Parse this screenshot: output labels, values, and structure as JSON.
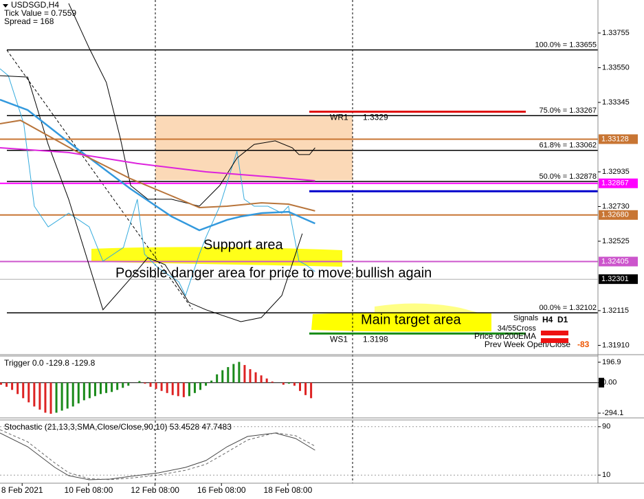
{
  "header": [
    "USDSGD,H4",
    "Tick Value = 0.7559",
    "Spread = 168"
  ],
  "annotations": [
    "Support area",
    "Possible danger area for price to move bullish again",
    "Main target area"
  ],
  "signals": {
    "title": "Signals",
    "timeframes": [
      "H4",
      "D1"
    ],
    "rows": [
      "34/55Cross",
      "Price on200EMA",
      "Prev Week Open/Close"
    ],
    "value": -83
  },
  "chart_data": [
    {
      "type": "line",
      "xlim": [
        0,
        108
      ],
      "xticks": [
        {
          "value": 4,
          "label": "8 Feb 2021"
        },
        {
          "value": 16,
          "label": "10 Feb 08:00"
        },
        {
          "value": 28,
          "label": "12 Feb 08:00"
        },
        {
          "value": 40,
          "label": "16 Feb 08:00"
        },
        {
          "value": 52,
          "label": "18 Feb 08:00"
        }
      ],
      "ylim": [
        1.31859,
        1.3395
      ],
      "yticks": [
        1.33755,
        {
          "value": 1.3355,
          "label": "1.33550"
        },
        1.33345,
        1.32935,
        {
          "value": 1.3273,
          "label": "1.32730"
        },
        1.32525,
        1.32115,
        {
          "value": 1.3191,
          "label": "1.31910"
        }
      ],
      "series": [
        {
          "color": "#33aadd",
          "width": 1,
          "x": [
            0,
            1.5,
            4.3,
            6.2,
            8.7,
            12.4,
            16.1,
            18.6,
            22.3,
            24.8,
            26.1,
            28.6,
            32.3,
            33.5,
            36,
            37.2,
            39.7,
            42.8,
            44.1,
            45.9,
            48.4,
            50.9,
            52.1,
            54,
            55.2,
            56.9
          ],
          "values": [
            1.33544,
            1.33503,
            1.33219,
            1.32732,
            1.3261,
            1.32691,
            1.3261,
            1.32407,
            1.32488,
            1.32773,
            1.32448,
            1.32367,
            1.32285,
            1.32204,
            1.32448,
            1.32549,
            1.32732,
            1.33057,
            1.32773,
            1.32732,
            1.32732,
            1.32691,
            1.32732,
            1.32407,
            1.32387,
            1.32346
          ]
        },
        {
          "color": "#000000",
          "width": 1,
          "x": [
            12.4,
            16.1,
            19.2,
            21.7,
            23.6,
            26.7,
            31,
            36,
            39.7,
            42.8,
            45.9,
            49.7,
            52.8,
            54,
            55.9,
            56.9
          ],
          "values": [
            1.3393,
            1.33666,
            1.33463,
            1.33138,
            1.32854,
            1.32773,
            1.32773,
            1.32732,
            1.32854,
            1.33016,
            1.33097,
            1.33118,
            1.33077,
            1.33037,
            1.33037,
            1.33077
          ]
        },
        {
          "color": "#000000",
          "width": 1,
          "x": [
            0,
            5,
            8.7,
            12.4,
            18.6,
            23.6,
            26.7,
            29.8,
            34.1,
            37.2,
            43.5,
            47.2,
            50.9,
            54.6
          ],
          "values": [
            1.33503,
            1.33495,
            1.33097,
            1.32773,
            1.3212,
            1.32306,
            1.32428,
            1.32387,
            1.32164,
            1.3212,
            1.3205,
            1.32074,
            1.32204,
            1.3257
          ]
        },
        {
          "color": "#3399dd",
          "width": 2.5,
          "x": [
            0,
            5,
            13.7,
            23.6,
            31,
            36,
            41,
            43.5,
            47.2,
            52.1,
            56.9
          ],
          "values": [
            1.33361,
            1.333,
            1.33077,
            1.32834,
            1.32671,
            1.3259,
            1.32651,
            1.32671,
            1.32691,
            1.32699,
            1.3263
          ]
        },
        {
          "color": "#b8743a",
          "width": 2,
          "x": [
            0,
            3.7,
            13.7,
            23.6,
            31,
            36,
            41,
            47.2,
            52.1,
            56.9
          ],
          "values": [
            1.33219,
            1.33239,
            1.33057,
            1.32894,
            1.32793,
            1.32724,
            1.32732,
            1.32752,
            1.32744,
            1.32704
          ]
        },
        {
          "color": "#dd22dd",
          "width": 2,
          "x": [
            0,
            12.4,
            24.8,
            37.2,
            49.7,
            56.9
          ],
          "values": [
            1.33077,
            1.33049,
            1.32984,
            1.32935,
            1.32903,
            1.32882
          ]
        }
      ],
      "fib_levels": [
        {
          "value": 1.33655,
          "label": "100.0% = 1.33655"
        },
        {
          "value": 1.33267,
          "label": "75.0% = 1.33267"
        },
        {
          "value": 1.33062,
          "label": "61.8% = 1.33062"
        },
        {
          "value": 1.32878,
          "label": "50.0% = 1.32878"
        },
        {
          "value": 1.32102,
          "label": "00.0% = 1.32102"
        }
      ],
      "price_lines": [
        {
          "value": 1.33128,
          "label": "1.33128",
          "color": "#c87533"
        },
        {
          "value": 1.32867,
          "label": "1.32867",
          "color": "#ff00ff"
        },
        {
          "value": 1.3268,
          "label": "1.32680",
          "color": "#c87533"
        },
        {
          "value": 1.32405,
          "label": "1.32405",
          "color": "#cc55cc"
        },
        {
          "value": 1.32301,
          "label": "1.32301",
          "color": "#000000"
        }
      ],
      "pivots": [
        {
          "name": "WR1",
          "value": 1.3329,
          "color": "#e01010"
        },
        {
          "value": 1.3282,
          "color": "#0000cc"
        },
        {
          "name": "WS1",
          "value": 1.3198,
          "color": "#138a13"
        }
      ]
    },
    {
      "type": "bar",
      "title": "Trigger 0.0 -129.8 -129.8",
      "ylim": [
        -340,
        250
      ],
      "yticks": [
        196.9,
        {
          "value": 0,
          "label": "0.00"
        },
        -294.1
      ],
      "up_color": "#1a8a1a",
      "down_color": "#dd2222",
      "values": [
        -20,
        -40,
        -70,
        -110,
        -150,
        -190,
        -230,
        -260,
        -290,
        -300,
        -290,
        -270,
        -250,
        -230,
        -200,
        -170,
        -150,
        -130,
        -110,
        -100,
        -90,
        -70,
        -50,
        -30,
        0,
        15,
        -10,
        -40,
        -60,
        -80,
        -100,
        -120,
        -130,
        -140,
        -130,
        -100,
        -70,
        -30,
        20,
        80,
        120,
        150,
        180,
        200,
        170,
        130,
        100,
        70,
        40,
        10,
        0,
        -20,
        -10,
        -30,
        -80,
        -120,
        -150
      ]
    },
    {
      "type": "line",
      "title": "Stochastic (21,13,3,SMA,Close/Close,90,10) 53.4528 47.7483",
      "ylim": [
        0,
        100
      ],
      "yticks": [
        90,
        10
      ],
      "series": [
        {
          "color": "#444444",
          "width": 1,
          "x": [
            0,
            5,
            9.9,
            12.4,
            16.1,
            19.9,
            23.6,
            28.6,
            33.5,
            37.2,
            41,
            44.7,
            49.7,
            53.4,
            56.9
          ],
          "values": [
            79.5,
            56.8,
            22.7,
            9.1,
            2.3,
            3.4,
            8,
            13.6,
            22.7,
            34.1,
            56.8,
            73.9,
            79.5,
            70.5,
            51.1
          ]
        },
        {
          "color": "#666666",
          "width": 1,
          "dash": true,
          "x": [
            0,
            5,
            9.9,
            12.4,
            16.1,
            19.9,
            23.6,
            28.6,
            33.5,
            37.2,
            41,
            44.7,
            49.7,
            53.4,
            56.9
          ],
          "values": [
            85,
            65,
            30,
            14,
            4,
            2.5,
            5,
            10,
            18,
            28,
            48,
            68,
            80,
            75,
            58
          ]
        }
      ]
    }
  ]
}
